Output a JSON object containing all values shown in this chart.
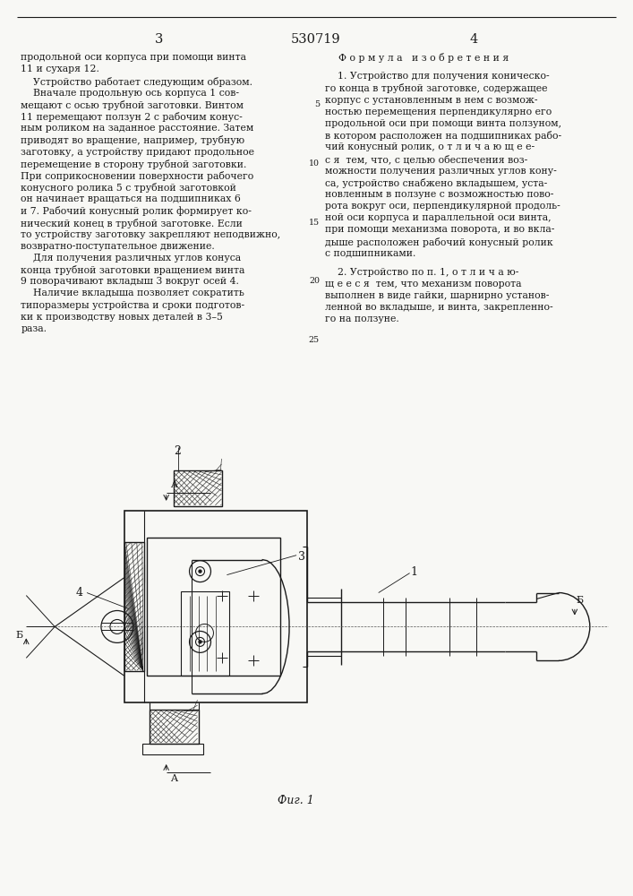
{
  "page_width": 7.07,
  "page_height": 10.0,
  "bg_color": "#f8f8f5",
  "text_color": "#1a1a1a",
  "line_color": "#1a1a1a",
  "header": {
    "left_num": "3",
    "center_num": "530719",
    "right_num": "4"
  },
  "left_col_lines": [
    "продольной оси корпуса при помощи винта",
    "11 и сухаря 12.",
    "    Устройство работает следующим образом.",
    "    Вначале продольную ось корпуса 1 сов-",
    "мещают с осью трубной заготовки. Винтом",
    "11 перемещают ползун 2 с рабочим конус-",
    "ным роликом на заданное расстояние. Затем",
    "приводят во вращение, например, трубную",
    "заготовку, а устройству придают продольное",
    "перемещение в сторону трубной заготовки.",
    "При соприкосновении поверхности рабочего",
    "конусного ролика 5 с трубной заготовкой",
    "он начинает вращаться на подшипниках 6",
    "и 7. Рабочий конусный ролик формирует ко-",
    "нический конец в трубной заготовке. Если",
    "то устройству заготовку закрепляют неподвижно,",
    "возвратно-поступательное движение.",
    "    Для получения различных углов конуса",
    "конца трубной заготовки вращением винта",
    "9 поворачивают вкладыш 3 вокруг осей 4.",
    "    Наличие вкладыша позволяет сократить",
    "типоразмеры устройства и сроки подготов-",
    "ки к производству новых деталей в 3–5",
    "раза."
  ],
  "formula_title": "Ф о р м у л а   и з о б р е т е н и я",
  "line_numbers": [
    5,
    10,
    15,
    20,
    25
  ],
  "claim1_lines": [
    "    1. Устройство для получения коническо-",
    "го конца в трубной заготовке, содержащее",
    "корпус с установленным в нем с возмож-",
    "ностью перемещения перпендикулярно его",
    "продольной оси при помощи винта ползуном,",
    "в котором расположен на подшипниках рабо-",
    "чий конусный ролик, о т л и ч а ю щ е е-",
    "с я  тем, что, с целью обеспечения воз-",
    "можности получения различных углов кону-",
    "са, устройство снабжено вкладышем, уста-",
    "новленным в ползуне с возможностью пово-",
    "рота вокруг оси, перпендикулярной продоль-",
    "ной оси корпуса и параллельной оси винта,",
    "при помощи механизма поворота, и во вкла-",
    "дыше расположен рабочий конусный ролик",
    "с подшипниками."
  ],
  "claim2_lines": [
    "    2. Устройство по п. 1, о т л и ч а ю-",
    "щ е е с я  тем, что механизм поворота",
    "выполнен в виде гайки, шарнирно установ-",
    "ленной во вкладыше, и винта, закрепленно-",
    "го на ползуне."
  ],
  "fig_caption": "Фиг. 1"
}
